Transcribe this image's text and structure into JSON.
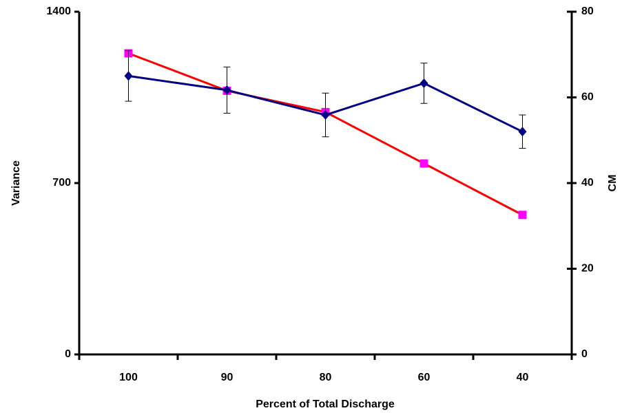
{
  "chart_data": {
    "type": "line",
    "categories": [
      "100",
      "90",
      "80",
      "60",
      "40"
    ],
    "xlabel": "Percent of Total Discharge",
    "ylabel": "Variance",
    "y2label": "CM",
    "ylim": [
      0,
      1400
    ],
    "yticks": [
      0,
      700,
      1400
    ],
    "y2lim": [
      0,
      80
    ],
    "y2ticks": [
      0,
      20,
      40,
      60,
      80
    ],
    "series": [
      {
        "color": "#ff0000",
        "marker_color": "#ff00ff",
        "marker": "square",
        "values": [
          1230,
          1077,
          990,
          780,
          570
        ]
      },
      {
        "color": "#000080",
        "marker_color": "#000080",
        "marker": "diamond",
        "axis": "y2",
        "values": [
          65,
          61.7,
          55.9,
          63.3,
          52
        ],
        "errors": [
          5.9,
          5.4,
          5.1,
          4.7,
          3.9
        ]
      }
    ]
  }
}
